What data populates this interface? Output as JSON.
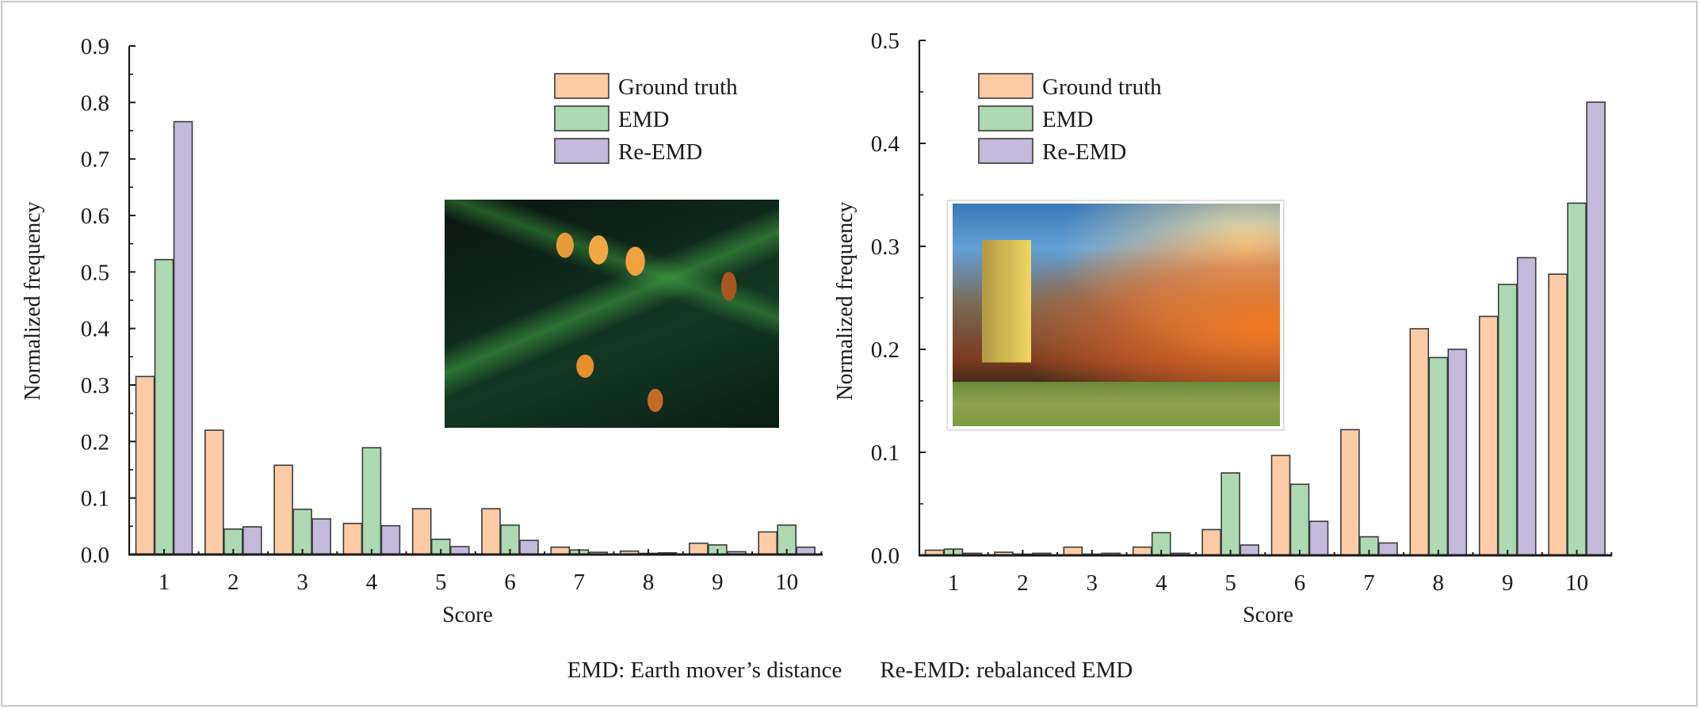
{
  "figure": {
    "caption_parts": [
      "EMD: Earth mover’s distance",
      "Re-EMD: rebalanced EMD"
    ],
    "colors": {
      "ground_truth": "#FDCBA5",
      "emd": "#ADDAB2",
      "re_emd": "#C4BADB",
      "axis": "#1a1a1a",
      "bar_stroke": "#3a3a3a"
    },
    "insets": [
      {
        "description": "blurred circuit board photo with orange capacitors"
      },
      {
        "description": "stone tower under dramatic sunset sky"
      }
    ]
  },
  "chart_data": [
    {
      "type": "bar",
      "title": "",
      "xlabel": "Score",
      "ylabel": "Normalized frequency",
      "categories": [
        "1",
        "2",
        "3",
        "4",
        "5",
        "6",
        "7",
        "8",
        "9",
        "10"
      ],
      "ylim": [
        0,
        0.9
      ],
      "yticks": [
        "0.0",
        "0.1",
        "0.2",
        "0.3",
        "0.4",
        "0.5",
        "0.6",
        "0.7",
        "0.8",
        "0.9"
      ],
      "ytick_values": [
        0,
        0.1,
        0.2,
        0.3,
        0.4,
        0.5,
        0.6,
        0.7,
        0.8,
        0.9
      ],
      "grid": false,
      "legend_position": "top-right",
      "series": [
        {
          "name": "Ground truth",
          "values": [
            0.315,
            0.22,
            0.158,
            0.055,
            0.081,
            0.081,
            0.013,
            0.006,
            0.02,
            0.04
          ]
        },
        {
          "name": "EMD",
          "values": [
            0.522,
            0.045,
            0.08,
            0.189,
            0.027,
            0.052,
            0.008,
            0.001,
            0.017,
            0.052
          ]
        },
        {
          "name": "Re-EMD",
          "values": [
            0.766,
            0.049,
            0.063,
            0.051,
            0.014,
            0.025,
            0.004,
            0.003,
            0.005,
            0.013
          ]
        }
      ]
    },
    {
      "type": "bar",
      "title": "",
      "xlabel": "Score",
      "ylabel": "Normalized frequency",
      "categories": [
        "1",
        "2",
        "3",
        "4",
        "5",
        "6",
        "7",
        "8",
        "9",
        "10"
      ],
      "ylim": [
        0,
        0.5
      ],
      "yticks": [
        "0.0",
        "0.1",
        "0.2",
        "0.3",
        "0.4",
        "0.5"
      ],
      "ytick_values": [
        0,
        0.1,
        0.2,
        0.3,
        0.4,
        0.5
      ],
      "grid": false,
      "legend_position": "top-left",
      "series": [
        {
          "name": "Ground truth",
          "values": [
            0.005,
            0.003,
            0.008,
            0.008,
            0.025,
            0.097,
            0.122,
            0.22,
            0.232,
            0.273
          ]
        },
        {
          "name": "EMD",
          "values": [
            0.006,
            0.0,
            0.0,
            0.022,
            0.08,
            0.069,
            0.018,
            0.192,
            0.263,
            0.342
          ]
        },
        {
          "name": "Re-EMD",
          "values": [
            0.002,
            0.002,
            0.002,
            0.002,
            0.01,
            0.033,
            0.012,
            0.2,
            0.289,
            0.44
          ]
        }
      ]
    }
  ]
}
